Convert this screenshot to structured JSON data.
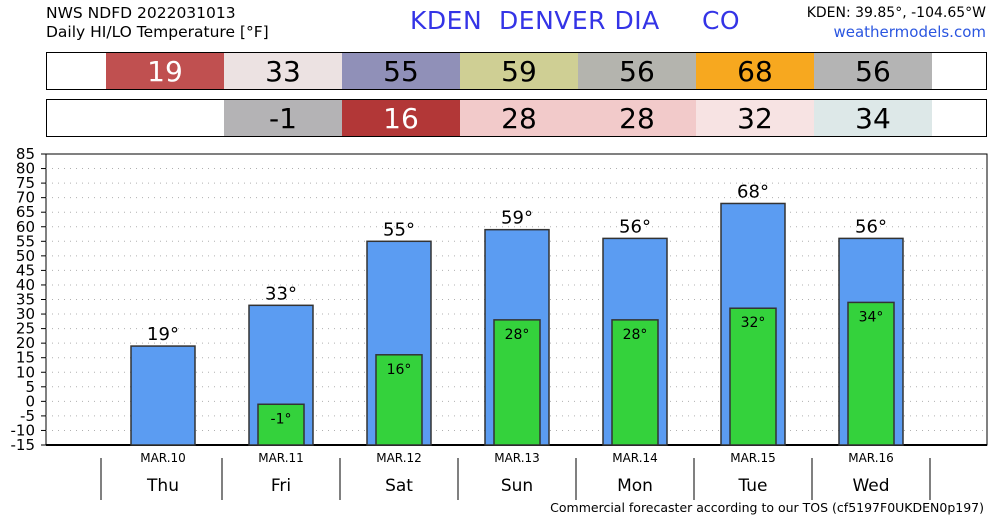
{
  "header": {
    "line1": "NWS NDFD 2022031013",
    "line2": "Daily HI/LO Temperature [°F]",
    "station_title": "KDEN  DENVER DIA     CO",
    "coords": "KDEN: 39.85°, -104.65°W",
    "website": "weathermodels.com"
  },
  "hi_strip": [
    {
      "text": "19",
      "color": "#c05050",
      "light": true
    },
    {
      "text": "33",
      "color": "#ece2e2",
      "light": false
    },
    {
      "text": "55",
      "color": "#9090b8",
      "light": false
    },
    {
      "text": "59",
      "color": "#cfcf94",
      "light": false
    },
    {
      "text": "56",
      "color": "#b4b4ae",
      "light": false
    },
    {
      "text": "68",
      "color": "#f7a81f",
      "light": false
    },
    {
      "text": "56",
      "color": "#b4b4b4",
      "light": false
    }
  ],
  "lo_strip": [
    {
      "text": "",
      "color": "#ffffff",
      "light": false
    },
    {
      "text": "-1",
      "color": "#b4b3b5",
      "light": false
    },
    {
      "text": "16",
      "color": "#b23737",
      "light": true
    },
    {
      "text": "28",
      "color": "#f2caca",
      "light": false
    },
    {
      "text": "28",
      "color": "#f2caca",
      "light": false
    },
    {
      "text": "32",
      "color": "#f7e3e3",
      "light": false
    },
    {
      "text": "34",
      "color": "#dde8e8",
      "light": false
    }
  ],
  "chart_data": {
    "type": "bar",
    "categories": [
      "MAR.10",
      "MAR.11",
      "MAR.12",
      "MAR.13",
      "MAR.14",
      "MAR.15",
      "MAR.16"
    ],
    "days": [
      "Thu",
      "Fri",
      "Sat",
      "Sun",
      "Mon",
      "Tue",
      "Wed"
    ],
    "series": [
      {
        "values": [
          19,
          33,
          55,
          59,
          56,
          68,
          56
        ],
        "color": "#5b9cf2"
      },
      {
        "values": [
          null,
          -1,
          16,
          28,
          28,
          32,
          34
        ],
        "color": "#34d23c"
      }
    ],
    "hi_labels": [
      "19°",
      "33°",
      "55°",
      "59°",
      "56°",
      "68°",
      "56°"
    ],
    "lo_labels": [
      "",
      "-1°",
      "16°",
      "28°",
      "28°",
      "32°",
      "34°"
    ],
    "ylim": [
      -15,
      85
    ],
    "yticks": [
      85,
      80,
      75,
      70,
      65,
      60,
      55,
      50,
      45,
      40,
      35,
      30,
      25,
      20,
      15,
      10,
      5,
      0,
      -5,
      -10,
      -15
    ],
    "grid": true
  },
  "footer": "Commercial forecaster according to our TOS (cf5197F0UKDEN0p197)"
}
